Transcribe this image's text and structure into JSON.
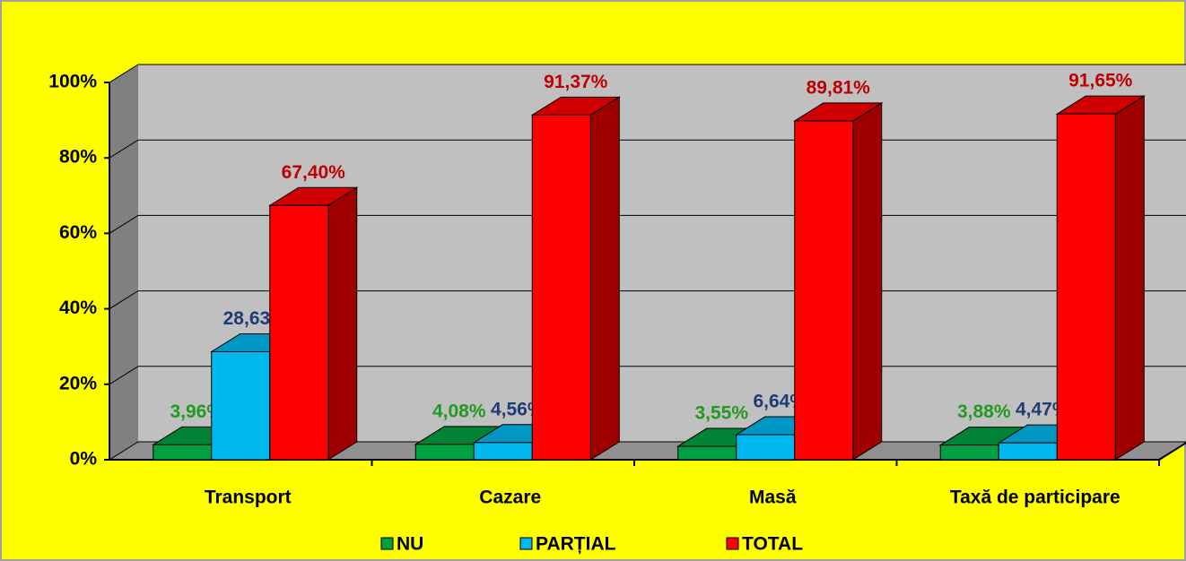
{
  "chart_data": {
    "type": "bar3d",
    "categories": [
      "Transport",
      "Cazare",
      "Masă",
      "Taxă de participare"
    ],
    "series": [
      {
        "name": "NU",
        "color": "#00a040",
        "label_color": "#229922",
        "values": [
          3.96,
          4.08,
          3.55,
          3.88
        ],
        "value_labels": [
          "3,96%",
          "4,08%",
          "3,55%",
          "3,88%"
        ]
      },
      {
        "name": "PARȚIAL",
        "color": "#00b8f0",
        "label_color": "#1f3b73",
        "values": [
          28.63,
          4.56,
          6.64,
          4.47
        ],
        "value_labels": [
          "28,63%",
          "4,56%",
          "6,64%",
          "4,47%"
        ]
      },
      {
        "name": "TOTAL",
        "color": "#ff0000",
        "label_color": "#c00000",
        "values": [
          67.4,
          91.37,
          89.81,
          91.65
        ],
        "value_labels": [
          "67,40%",
          "91,37%",
          "89,81%",
          "91,65%"
        ]
      }
    ],
    "ylim": [
      0,
      100
    ],
    "yticks": [
      {
        "value": 0,
        "label": "0%"
      },
      {
        "value": 20,
        "label": "20%"
      },
      {
        "value": 40,
        "label": "40%"
      },
      {
        "value": 60,
        "label": "60%"
      },
      {
        "value": 80,
        "label": "80%"
      },
      {
        "value": 100,
        "label": "100%"
      }
    ],
    "grid": true,
    "background": "#ffff00",
    "legend": "bottom"
  }
}
